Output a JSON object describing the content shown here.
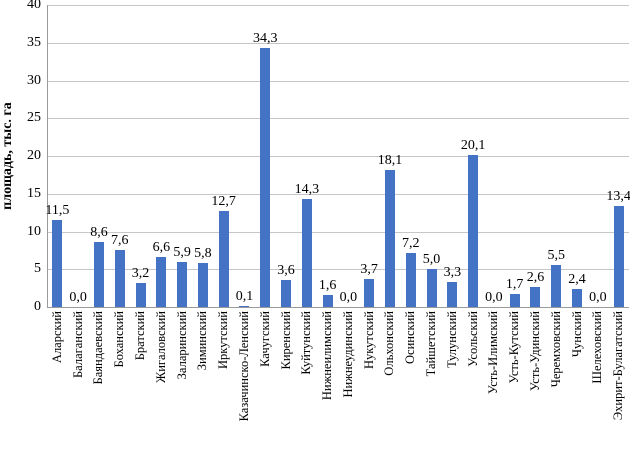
{
  "chart_data": {
    "type": "bar",
    "title": "",
    "xlabel": "",
    "ylabel": "площадь, тыс. га",
    "ylim": [
      0,
      40
    ],
    "ytick_step": 5,
    "grid": true,
    "legend": false,
    "decimal_separator": ",",
    "colors": {
      "bar": "#4472C4",
      "gridline": "#c6c6c6",
      "axis": "#9a9a9a",
      "text": "#000000"
    },
    "categories": [
      "Аларский",
      "Балаганский",
      "Баяндаевский",
      "Боханский",
      "Братский",
      "Жигаловский",
      "Заларинский",
      "Зиминский",
      "Иркутский",
      "Казачинско-Ленский",
      "Качугский",
      "Киренский",
      "Куйтунский",
      "Нижнеилимский",
      "Нижнеудинский",
      "Нукутский",
      "Ольхонский",
      "Осинский",
      "Тайшетский",
      "Тулунский",
      "Усольский",
      "Усть-Илимский",
      "Усть-Кутский",
      "Усть-Удинский",
      "Черемховский",
      "Чунский",
      "Шелеховский",
      "Эхирит-Булагатский"
    ],
    "values": [
      11.5,
      0.0,
      8.6,
      7.6,
      3.2,
      6.6,
      5.9,
      5.8,
      12.7,
      0.1,
      34.3,
      3.6,
      14.3,
      1.6,
      0.0,
      3.7,
      18.1,
      7.2,
      5.0,
      3.3,
      20.1,
      0.0,
      1.7,
      2.6,
      5.5,
      2.4,
      0.0,
      13.4
    ]
  }
}
